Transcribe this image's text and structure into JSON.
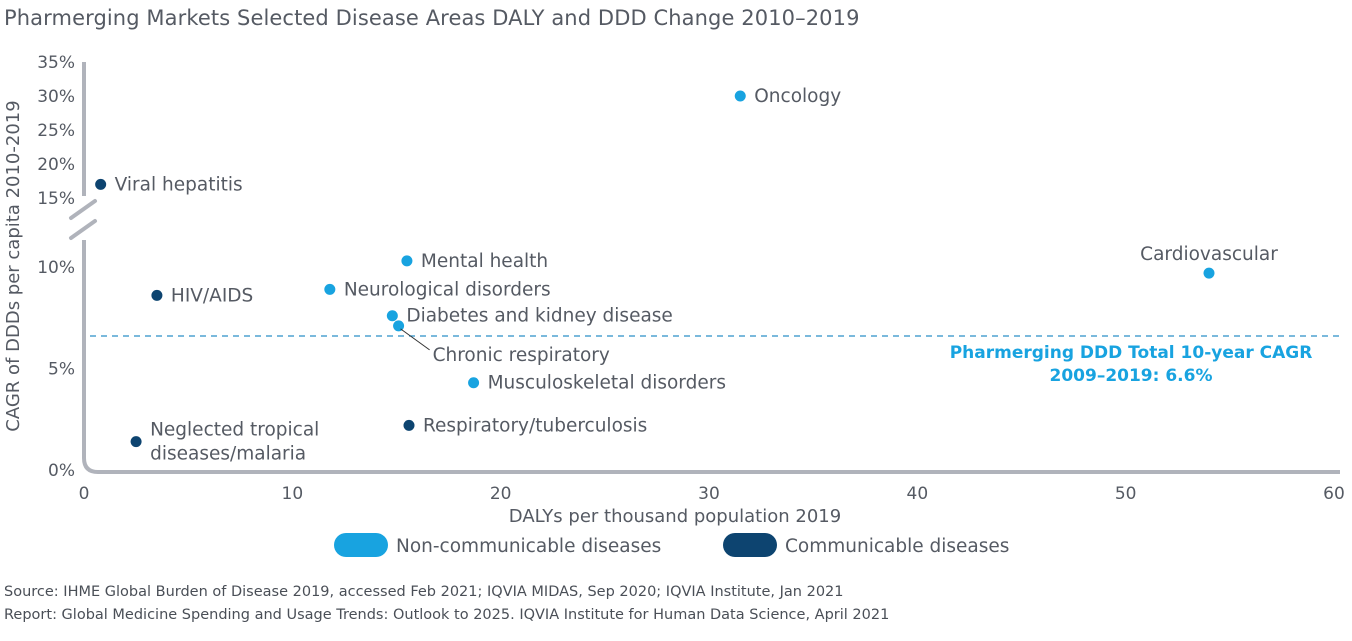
{
  "title": "Pharmerging Markets Selected Disease Areas DALY and DDD Change 2010–2019",
  "chart_data": {
    "type": "scatter",
    "xlabel": "DALYs per thousand population 2019",
    "ylabel": "CAGR of DDDs per capita 2010-2019",
    "xlim": [
      0,
      60
    ],
    "x_ticks": [
      "0",
      "10",
      "20",
      "30",
      "40",
      "50",
      "60"
    ],
    "x_tick_values": [
      0,
      10,
      20,
      30,
      40,
      50,
      60
    ],
    "y_ticks_lower": [
      "0%",
      "5%",
      "10%"
    ],
    "y_tick_values_lower": [
      0,
      5,
      10
    ],
    "y_ticks_upper": [
      "15%",
      "20%",
      "25%",
      "30%",
      "35%"
    ],
    "y_tick_values_upper": [
      15,
      20,
      25,
      30,
      35
    ],
    "y_axis_break": "between 10% and 15%",
    "reference_line": {
      "value": 6.6,
      "label_line1": "Pharmerging DDD Total 10-year CAGR",
      "label_line2": "2009–2019: 6.6%"
    },
    "series": [
      {
        "name": "Non-communicable diseases",
        "color": "#18a3e0",
        "points": [
          {
            "label": "Oncology",
            "x": 31.5,
            "y": 30
          },
          {
            "label": "Cardiovascular",
            "x": 54.0,
            "y": 9.7
          },
          {
            "label": "Mental health",
            "x": 15.5,
            "y": 10.3
          },
          {
            "label": "Neurological disorders",
            "x": 11.8,
            "y": 8.9
          },
          {
            "label": "Diabetes and kidney disease",
            "x": 14.8,
            "y": 7.6
          },
          {
            "label": "Chronic respiratory",
            "x": 15.1,
            "y": 7.1
          },
          {
            "label": "Musculoskeletal disorders",
            "x": 18.7,
            "y": 4.3
          }
        ]
      },
      {
        "name": "Communicable diseases",
        "color": "#0d4470",
        "points": [
          {
            "label": "Viral hepatitis",
            "x": 0.8,
            "y": 17
          },
          {
            "label": "HIV/AIDS",
            "x": 3.5,
            "y": 8.6
          },
          {
            "label": "Respiratory/tuberculosis",
            "x": 15.6,
            "y": 2.2
          },
          {
            "label": "Neglected tropical\ndiseases/malaria",
            "x": 2.5,
            "y": 1.4
          }
        ]
      }
    ],
    "legend": [
      "Non-communicable diseases",
      "Communicable diseases"
    ]
  },
  "footer": {
    "source": "Source: IHME Global Burden of Disease 2019, accessed Feb 2021; IQVIA MIDAS, Sep 2020; IQVIA Institute, Jan 2021",
    "report": "Report: Global Medicine Spending and Usage Trends: Outlook to 2025. IQVIA Institute for Human Data Science, April 2021"
  }
}
